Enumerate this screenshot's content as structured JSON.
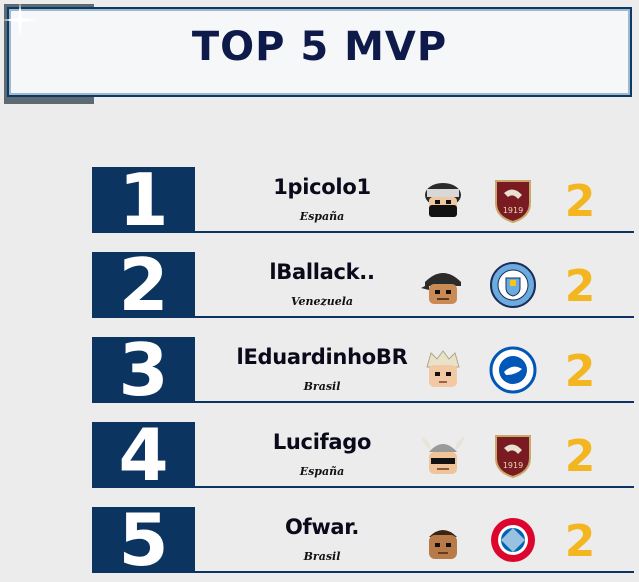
{
  "title": "TOP 5 MVP",
  "colors": {
    "rank_bg": "#0c3461",
    "title_text": "#0d1a4a",
    "score": "#f3b620",
    "background": "#ececec"
  },
  "players": [
    {
      "rank": "1",
      "name": "1picolo1",
      "country": "España",
      "score": "2",
      "avatar": "avatar-masked-icon",
      "club": "salernitana-crest-icon"
    },
    {
      "rank": "2",
      "name": "lBallack..",
      "country": "Venezuela",
      "score": "2",
      "avatar": "avatar-bandana-icon",
      "club": "manchester-city-crest-icon"
    },
    {
      "rank": "3",
      "name": "lEduardinhoBR",
      "country": "Brasil",
      "score": "2",
      "avatar": "avatar-blond-icon",
      "club": "brighton-crest-icon"
    },
    {
      "rank": "4",
      "name": "Lucifago",
      "country": "España",
      "score": "2",
      "avatar": "avatar-viking-icon",
      "club": "salernitana-crest-icon"
    },
    {
      "rank": "5",
      "name": "Ofwar.",
      "country": "Brasil",
      "score": "2",
      "avatar": "avatar-plain-icon",
      "club": "bayern-munchen-crest-icon"
    }
  ]
}
